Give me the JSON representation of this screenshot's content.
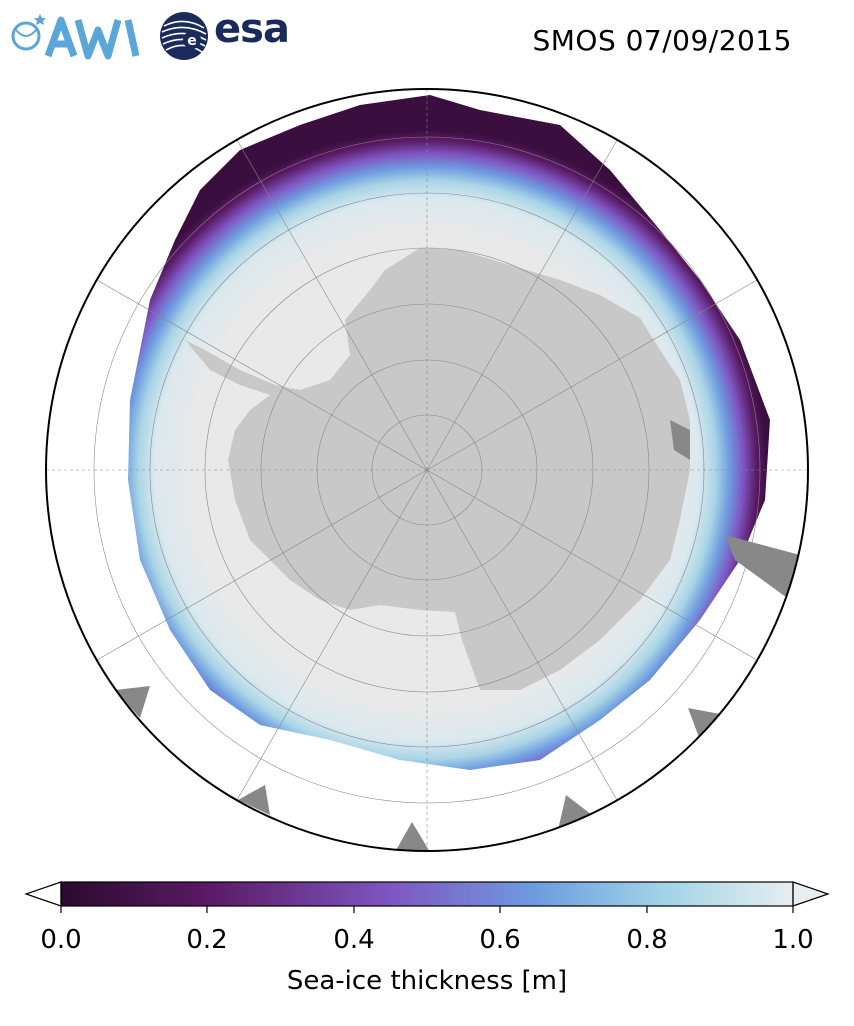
{
  "header": {
    "title": "SMOS 07/09/2015",
    "logos": {
      "awi_text": "AWI",
      "esa_text": "esa"
    }
  },
  "map": {
    "projection": "south-polar-stereographic",
    "hemisphere": "Southern",
    "gridlines": "dashed gray meridians and parallels",
    "colors": {
      "open_ocean": "#ffffff",
      "thick_ice": "#e9e9e9",
      "land": "#c8c8c8",
      "no_data": "#888888",
      "outline": "#000000"
    }
  },
  "colorbar": {
    "label": "Sea-ice thickness [m]",
    "min": 0.0,
    "max": 1.0,
    "ticks": [
      "0.0",
      "0.2",
      "0.4",
      "0.6",
      "0.8",
      "1.0"
    ],
    "extend": "both",
    "colormap": [
      "#2b0a2e",
      "#5a1a64",
      "#7e56c2",
      "#6f9ce0",
      "#9fd3e6",
      "#e8eef0"
    ]
  }
}
